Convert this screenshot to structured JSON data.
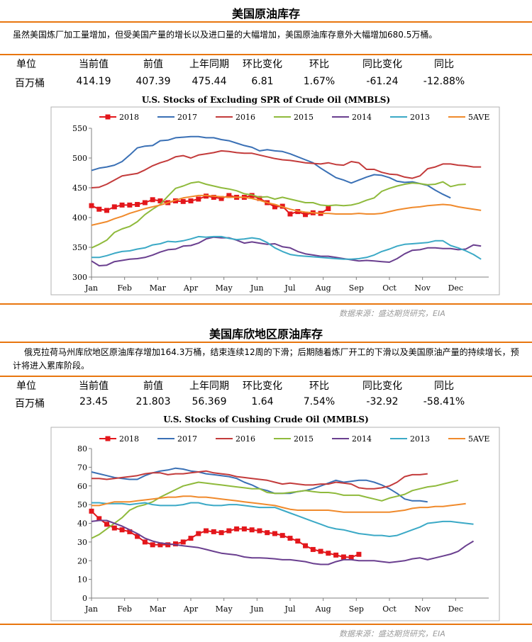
{
  "section1": {
    "title": "美国原油库存",
    "paragraph": "虽然美国炼厂加工量增加，但受美国产量的增长以及进口量的大幅增加，美国原油库存意外大幅增加680.5万桶。",
    "table": {
      "headers": [
        "单位",
        "当前值",
        "前值",
        "上年同期",
        "环比变化",
        "环比",
        "同比变化",
        "同比"
      ],
      "values": [
        "百万桶",
        "414.19",
        "407.39",
        "475.44",
        "6.81",
        "1.67%",
        "-61.24",
        "-12.88%"
      ]
    },
    "source": "数据来源：盛达期货研究，EIA"
  },
  "section2": {
    "title": "美国库欣地区原油库存",
    "paragraph": "俄克拉荷马州库欣地区原油库存增加164.3万桶，结束连续12周的下滑；后期随着炼厂开工的下滑以及美国原油产量的持续增长，预计将进入累库阶段。",
    "table": {
      "headers": [
        "单位",
        "当前值",
        "前值",
        "上年同期",
        "环比变化",
        "环比",
        "同比变化",
        "同比"
      ],
      "values": [
        "百万桶",
        "23.45",
        "21.803",
        "56.369",
        "1.64",
        "7.54%",
        "-32.92",
        "-58.41%"
      ]
    },
    "source": "数据来源：盛达期货研究，EIA"
  },
  "colors": {
    "accent": "#e8760f",
    "s2018": "#e3161b",
    "s2017": "#3a70b5",
    "s2016": "#c33b3b",
    "s2015": "#8fba3c",
    "s2014": "#6a3f8f",
    "s2013": "#3ba9c6",
    "s5ave": "#f08a2c"
  },
  "chart_data": [
    {
      "type": "line",
      "title": "U.S. Stocks of Excluding SPR of Crude Oil (MMBLS)",
      "x_ticks": [
        "Jan",
        "Feb",
        "Mar",
        "Apr",
        "May",
        "Jun",
        "Jul",
        "Aug",
        "Sep",
        "Oct",
        "Nov",
        "Dec"
      ],
      "ylim": [
        300,
        550
      ],
      "y_ticks": [
        300,
        350,
        400,
        450,
        500,
        550
      ],
      "legend_position": "top",
      "grid": false,
      "series": [
        {
          "name": "2018",
          "color": "#e3161b",
          "marker": "square",
          "values": [
            420,
            414,
            412,
            418,
            421,
            421,
            422,
            425,
            430,
            428,
            425,
            428,
            427,
            428,
            431,
            436,
            434,
            432,
            437,
            434,
            434,
            437,
            432,
            425,
            418,
            419,
            406,
            410,
            405,
            408,
            407,
            415
          ]
        },
        {
          "name": "2017",
          "color": "#3a70b5",
          "values": [
            479,
            483,
            485,
            488,
            494,
            505,
            517,
            520,
            521,
            529,
            530,
            534,
            535,
            536,
            536,
            534,
            534,
            531,
            529,
            525,
            521,
            518,
            512,
            514,
            512,
            511,
            507,
            502,
            497,
            492,
            483,
            475,
            467,
            463,
            458,
            463,
            468,
            472,
            471,
            467,
            461,
            459,
            460,
            457,
            454,
            446,
            439,
            433
          ]
        },
        {
          "name": "2016",
          "color": "#c33b3b",
          "values": [
            450,
            451,
            456,
            463,
            470,
            472,
            474,
            480,
            487,
            492,
            496,
            502,
            504,
            500,
            505,
            507,
            509,
            512,
            511,
            509,
            508,
            508,
            505,
            502,
            499,
            497,
            496,
            494,
            492,
            491,
            490,
            492,
            489,
            488,
            494,
            492,
            481,
            481,
            476,
            473,
            472,
            468,
            466,
            470,
            482,
            485,
            490,
            490,
            488,
            487,
            485,
            485
          ]
        },
        {
          "name": "2015",
          "color": "#8fba3c",
          "values": [
            349,
            355,
            362,
            375,
            381,
            385,
            393,
            405,
            414,
            422,
            436,
            449,
            453,
            458,
            460,
            456,
            453,
            450,
            448,
            445,
            440,
            438,
            434,
            435,
            431,
            434,
            431,
            428,
            425,
            425,
            421,
            420,
            421,
            420,
            421,
            424,
            429,
            433,
            444,
            449,
            453,
            456,
            458,
            457,
            455,
            456,
            460,
            452,
            455,
            456
          ]
        },
        {
          "name": "2014",
          "color": "#6a3f8f",
          "values": [
            327,
            319,
            320,
            326,
            328,
            330,
            331,
            333,
            337,
            342,
            346,
            347,
            352,
            353,
            357,
            364,
            367,
            366,
            366,
            362,
            357,
            359,
            357,
            355,
            356,
            351,
            349,
            343,
            339,
            337,
            335,
            335,
            333,
            331,
            329,
            327,
            328,
            327,
            326,
            325,
            331,
            339,
            345,
            346,
            349,
            349,
            348,
            348,
            346,
            347,
            354,
            352
          ]
        },
        {
          "name": "2013",
          "color": "#3ba9c6",
          "values": [
            333,
            333,
            336,
            340,
            343,
            344,
            347,
            349,
            354,
            356,
            360,
            359,
            361,
            364,
            368,
            367,
            368,
            368,
            365,
            363,
            364,
            366,
            364,
            358,
            349,
            343,
            338,
            336,
            335,
            334,
            333,
            332,
            331,
            330,
            330,
            331,
            333,
            337,
            343,
            347,
            352,
            355,
            356,
            357,
            358,
            361,
            361,
            353,
            349,
            344,
            338,
            330
          ]
        },
        {
          "name": "5AVE",
          "color": "#f08a2c",
          "values": [
            387,
            390,
            393,
            398,
            402,
            407,
            411,
            415,
            418,
            421,
            425,
            429,
            433,
            435,
            437,
            437,
            436,
            435,
            434,
            434,
            434,
            432,
            429,
            425,
            422,
            418,
            414,
            411,
            409,
            408,
            407,
            407,
            406,
            406,
            406,
            407,
            406,
            406,
            407,
            410,
            413,
            415,
            417,
            418,
            420,
            421,
            422,
            421,
            418,
            416,
            414,
            412
          ]
        }
      ]
    },
    {
      "type": "line",
      "title": "U.S. Stocks of Cushing Crude Oil (MMBLS)",
      "x_ticks": [
        "Jan",
        "Feb",
        "Mar",
        "Apr",
        "May",
        "Jun",
        "Jul",
        "Aug",
        "Sep",
        "Oct",
        "Nov",
        "Dec"
      ],
      "ylim": [
        0,
        80
      ],
      "y_ticks": [
        0,
        10,
        20,
        30,
        40,
        50,
        60,
        70,
        80
      ],
      "legend_position": "top",
      "grid": false,
      "series": [
        {
          "name": "2018",
          "color": "#e3161b",
          "marker": "square",
          "values": [
            46.5,
            42.5,
            39.5,
            37.5,
            36.5,
            35.5,
            33,
            30,
            28.5,
            28.5,
            28.5,
            29,
            30,
            32,
            34.5,
            36,
            35.5,
            35,
            36,
            37,
            37,
            36.5,
            36,
            35,
            34.5,
            33.5,
            32,
            30.5,
            28,
            26,
            25,
            24,
            23,
            22,
            21.8,
            23.4
          ]
        },
        {
          "name": "2017",
          "color": "#3a70b5",
          "values": [
            67.5,
            66.5,
            65.5,
            64.5,
            64,
            63.5,
            63.5,
            65.5,
            67,
            68,
            68.5,
            69.5,
            69,
            68,
            67.5,
            66.5,
            66,
            65.5,
            65,
            64,
            62,
            60.5,
            58.5,
            57.5,
            56,
            56,
            56,
            57,
            57.5,
            58.5,
            60,
            61.5,
            63,
            62,
            62.5,
            63,
            63,
            62,
            60.5,
            58.5,
            56,
            53,
            52,
            52,
            51.5
          ]
        },
        {
          "name": "2016",
          "color": "#c33b3b",
          "values": [
            64,
            64,
            63.5,
            64,
            64.5,
            65,
            65.5,
            66.5,
            67,
            67,
            66,
            66.5,
            66.5,
            67,
            67.5,
            68,
            67,
            66.5,
            66,
            65,
            64.5,
            64,
            63.5,
            63,
            62,
            61,
            61.5,
            61,
            60.5,
            60.5,
            61,
            61,
            62,
            61.5,
            61,
            59,
            58.5,
            58.5,
            59,
            60,
            62,
            65,
            66,
            66,
            66.5
          ]
        },
        {
          "name": "2015",
          "color": "#8fba3c",
          "values": [
            32,
            34,
            37,
            40,
            43,
            47,
            49,
            50,
            51.5,
            54,
            56,
            58,
            60,
            61,
            62,
            61.5,
            61,
            60.5,
            60,
            59.5,
            59,
            58.5,
            58.5,
            56.5,
            56,
            56,
            56.5,
            57,
            57.5,
            57,
            56.5,
            56.5,
            56,
            55,
            55,
            55,
            54,
            53,
            52,
            53.5,
            54.5,
            55.5,
            57.5,
            58.5,
            59.5,
            60,
            61,
            62,
            63
          ]
        },
        {
          "name": "2014",
          "color": "#6a3f8f",
          "values": [
            41,
            41.5,
            41.5,
            40,
            38.5,
            36.5,
            34.5,
            32,
            30.5,
            29.5,
            29,
            28.5,
            28,
            27.5,
            27,
            26,
            25,
            24,
            23.5,
            23,
            22,
            21.5,
            21.5,
            21.3,
            21,
            20.5,
            20.5,
            20,
            19.5,
            18.5,
            18,
            18,
            19.5,
            20.5,
            20.5,
            20,
            20,
            20,
            19.5,
            19,
            19.5,
            20,
            21,
            21.5,
            20.5,
            21.5,
            22.5,
            23.5,
            25,
            28,
            30.5
          ]
        },
        {
          "name": "2013",
          "color": "#3ba9c6",
          "values": [
            51,
            51,
            50.5,
            50.5,
            50.5,
            50,
            50.5,
            51,
            50,
            49.5,
            49.5,
            49.5,
            50,
            51,
            51,
            50,
            49.5,
            49.5,
            50,
            50,
            49.5,
            49,
            48.5,
            48.5,
            48.5,
            47,
            45.5,
            44,
            42.5,
            41,
            39.5,
            38,
            37,
            36.5,
            35.5,
            34.5,
            34,
            33.5,
            33.5,
            33,
            33.5,
            35,
            36.5,
            38,
            40,
            40.5,
            41,
            41,
            40.5,
            40,
            39.5
          ]
        },
        {
          "name": "5AVE",
          "color": "#f08a2c",
          "values": [
            49.5,
            49.5,
            50.5,
            51.5,
            51.5,
            51.5,
            52,
            52.5,
            53,
            53.5,
            54,
            54,
            54.5,
            54.5,
            54,
            54,
            53.5,
            53,
            52.5,
            52,
            51.5,
            51,
            50.5,
            50,
            49.5,
            48.5,
            47.5,
            47,
            47,
            47,
            47,
            47,
            46.5,
            46,
            46,
            46,
            46,
            46,
            46,
            46,
            46.5,
            47,
            48,
            48.5,
            48.5,
            49,
            49,
            49.5,
            50,
            50.5
          ]
        }
      ]
    }
  ]
}
